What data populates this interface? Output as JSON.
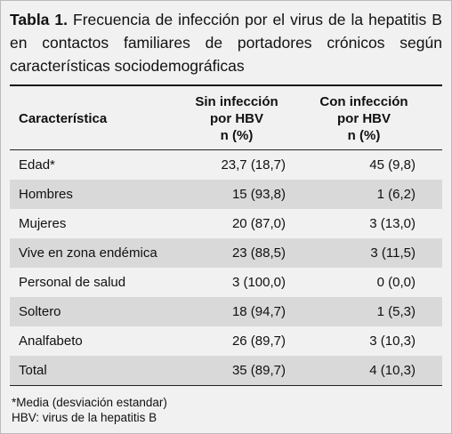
{
  "title": {
    "label": "Tabla 1.",
    "text": "Frecuencia de infección por el virus de la hepatitis B en contactos familiares de portadores crónicos según características sociodemográficas"
  },
  "table": {
    "columns": [
      [
        "Característica"
      ],
      [
        "Sin infección",
        "por HBV",
        "n (%)"
      ],
      [
        "Con infección",
        "por HBV",
        "n (%)"
      ]
    ],
    "rows": [
      [
        "Edad*",
        "23,7 (18,7)",
        "45 (9,8)"
      ],
      [
        "Hombres",
        "15 (93,8)",
        "1 (6,2)"
      ],
      [
        "Mujeres",
        "20 (87,0)",
        "3 (13,0)"
      ],
      [
        "Vive en zona endémica",
        "23 (88,5)",
        "3 (11,5)"
      ],
      [
        "Personal de salud",
        "3 (100,0)",
        "0 (0,0)"
      ],
      [
        "Soltero",
        "18 (94,7)",
        "1 (5,3)"
      ],
      [
        "Analfabeto",
        "26 (89,7)",
        "3 (10,3)"
      ],
      [
        "Total",
        "35 (89,7)",
        "4 (10,3)"
      ]
    ]
  },
  "footnotes": [
    "*Media (desviación estandar)",
    "HBV: virus de la hepatitis B"
  ]
}
